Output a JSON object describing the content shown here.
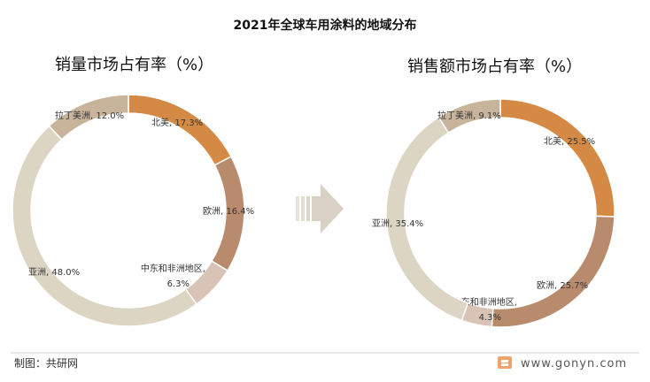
{
  "title": "2021年全球车用涂料的地域分布",
  "source": "制图：共研网",
  "website": "www.gonyn.com",
  "chart_data": [
    {
      "type": "pie",
      "donut": true,
      "title": "销量市场占有率（%）",
      "slices": [
        {
          "name": "北美",
          "value": 17.3,
          "label": "北美, 17.3%",
          "color": "#D48A44"
        },
        {
          "name": "欧洲",
          "value": 16.4,
          "label": "欧洲, 16.4%",
          "color": "#B98B6D"
        },
        {
          "name": "中东和非洲地区",
          "value": 6.3,
          "label": "中东和非洲地区,",
          "label2": "6.3%",
          "color": "#D9C2B6"
        },
        {
          "name": "亚洲",
          "value": 48.0,
          "label": "亚洲, 48.0%",
          "color": "#DDD5C4"
        },
        {
          "name": "拉丁美洲",
          "value": 12.0,
          "label": "拉丁美洲, 12.0%",
          "color": "#C8B49A"
        }
      ]
    },
    {
      "type": "pie",
      "donut": true,
      "title": "销售额市场占有率（%）",
      "slices": [
        {
          "name": "北美",
          "value": 25.5,
          "label": "北美, 25.5%",
          "color": "#D48A44"
        },
        {
          "name": "欧洲",
          "value": 25.7,
          "label": "欧洲, 25.7%",
          "color": "#B98B6D"
        },
        {
          "name": "中东和非洲地区",
          "value": 4.3,
          "label": "中东和非洲地区,",
          "label2": "4.3%",
          "color": "#D9C2B6"
        },
        {
          "name": "亚洲",
          "value": 35.4,
          "label": "亚洲, 35.4%",
          "color": "#DDD5C4"
        },
        {
          "name": "拉丁美洲",
          "value": 9.1,
          "label": "拉丁美洲, 9.1%",
          "color": "#C8B49A"
        }
      ]
    }
  ]
}
